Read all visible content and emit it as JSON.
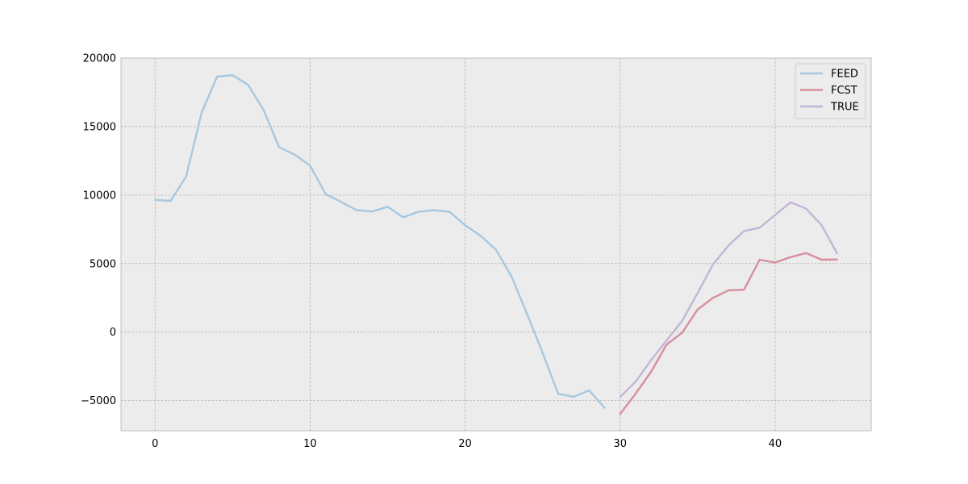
{
  "chart_data": {
    "type": "line",
    "title": "",
    "xlabel": "",
    "ylabel": "",
    "xlim": [
      -2.2,
      46.2
    ],
    "ylim": [
      -7200,
      20000
    ],
    "xticks": [
      0,
      10,
      20,
      30,
      40
    ],
    "yticks": [
      -5000,
      0,
      5000,
      10000,
      15000,
      20000
    ],
    "xtick_labels": [
      "0",
      "10",
      "20",
      "30",
      "40"
    ],
    "ytick_labels": [
      "−5000",
      "0",
      "5000",
      "10000",
      "15000",
      "20000"
    ],
    "grid": true,
    "legend_position": "top-right",
    "series": [
      {
        "name": "FEED",
        "color": "#a6c8e0",
        "x": [
          0,
          1,
          2,
          3,
          4,
          5,
          6,
          7,
          8,
          9,
          10,
          11,
          12,
          13,
          14,
          15,
          16,
          17,
          18,
          19,
          20,
          21,
          22,
          23,
          24,
          25,
          26,
          27,
          28,
          29
        ],
        "y": [
          9650,
          9580,
          11350,
          16000,
          18650,
          18750,
          18050,
          16200,
          13500,
          12950,
          12150,
          10080,
          9500,
          8900,
          8800,
          9150,
          8380,
          8780,
          8900,
          8780,
          7800,
          7030,
          6000,
          4050,
          1320,
          -1500,
          -4500,
          -4720,
          -4250,
          -5520
        ]
      },
      {
        "name": "FCST",
        "color": "#d88e9e",
        "x": [
          30,
          31,
          32,
          33,
          34,
          35,
          36,
          37,
          38,
          39,
          40,
          41,
          42,
          43,
          44
        ],
        "y": [
          -5980,
          -4500,
          -2900,
          -900,
          -50,
          1650,
          2500,
          3050,
          3100,
          5280,
          5080,
          5470,
          5770,
          5280,
          5300
        ]
      },
      {
        "name": "TRUE",
        "color": "#c2b6d4",
        "x": [
          30,
          31,
          32,
          33,
          34,
          35,
          36,
          37,
          38,
          39,
          40,
          41,
          42,
          43,
          44
        ],
        "y": [
          -4740,
          -3620,
          -2050,
          -600,
          820,
          2850,
          4950,
          6330,
          7380,
          7620,
          8550,
          9480,
          9010,
          7800,
          5750
        ]
      }
    ]
  }
}
